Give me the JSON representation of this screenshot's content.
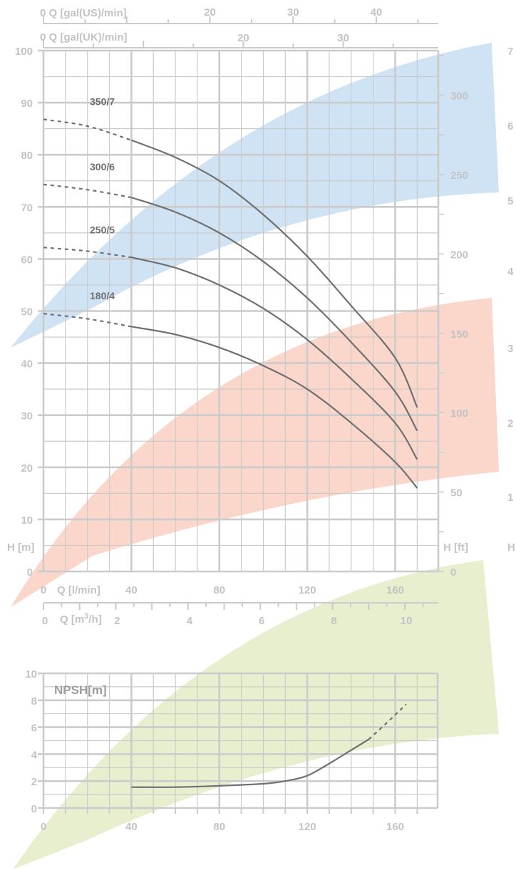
{
  "chart_data": [
    {
      "type": "line",
      "title": "",
      "xlabel": "Q [l/min]",
      "ylabel": "H [m]",
      "xlim": [
        0,
        180
      ],
      "ylim": [
        0,
        100
      ],
      "x_ticks": [
        "0",
        "40",
        "80",
        "120",
        "160"
      ],
      "y_ticks": [
        "0",
        "10",
        "20",
        "30",
        "40",
        "50",
        "60",
        "70",
        "80",
        "90",
        "100"
      ],
      "secondary_axes": {
        "right": {
          "label": "H [ft]",
          "ticks": [
            "0",
            "50",
            "100",
            "150",
            "200",
            "250",
            "300"
          ]
        },
        "top_us": {
          "label": "0  Q [gal(US)/min]",
          "ticks": [
            "20",
            "30",
            "40"
          ]
        },
        "top_uk": {
          "label": "0  Q [gal(UK)/min]",
          "ticks": [
            "20",
            "30"
          ]
        },
        "bottom_m3h": {
          "label": "Q [m3/h]",
          "zero": "0",
          "ticks": [
            "2",
            "4",
            "6",
            "8",
            "10"
          ]
        }
      },
      "grid": true,
      "partial_right_labels": [
        "7",
        "6",
        "5",
        "4",
        "3",
        "2",
        "1",
        "H ["
      ],
      "series": [
        {
          "name": "350/7",
          "x": [
            0,
            20,
            40,
            60,
            80,
            100,
            120,
            140,
            160,
            170
          ],
          "y": [
            86.8,
            85.5,
            82.8,
            79.5,
            75,
            68.5,
            60.5,
            51,
            41,
            31.5
          ],
          "dashed_until": 40
        },
        {
          "name": "300/6",
          "x": [
            0,
            20,
            40,
            60,
            80,
            100,
            120,
            140,
            160,
            170
          ],
          "y": [
            74.3,
            73.3,
            71.8,
            69,
            65,
            59.5,
            52.5,
            44,
            34.5,
            27
          ],
          "dashed_until": 40
        },
        {
          "name": "250/5",
          "x": [
            0,
            20,
            40,
            60,
            80,
            100,
            120,
            140,
            160,
            170
          ],
          "y": [
            62.2,
            61.5,
            60.3,
            58.3,
            55,
            50.5,
            44.5,
            37,
            28.5,
            21.5
          ],
          "dashed_until": 40
        },
        {
          "name": "180/4",
          "x": [
            0,
            20,
            40,
            60,
            80,
            100,
            120,
            140,
            160,
            170
          ],
          "y": [
            49.5,
            48.5,
            47,
            45.5,
            43,
            39.5,
            35,
            28.5,
            21,
            16
          ],
          "dashed_until": 40
        }
      ]
    },
    {
      "type": "line",
      "title": "",
      "xlabel": "",
      "ylabel": "NPSH[m]",
      "xlim": [
        0,
        180
      ],
      "ylim": [
        0,
        10
      ],
      "x_ticks": [
        "0",
        "40",
        "80",
        "120",
        "160"
      ],
      "y_ticks": [
        "0",
        "2",
        "4",
        "6",
        "8",
        "10"
      ],
      "grid": true,
      "series": [
        {
          "name": "",
          "x": [
            40,
            60,
            80,
            100,
            110,
            120,
            130,
            140,
            148,
            156,
            165
          ],
          "y": [
            1.55,
            1.55,
            1.65,
            1.8,
            2.0,
            2.4,
            3.3,
            4.3,
            5.1,
            6.3,
            7.7
          ],
          "dashed_from": 148
        }
      ]
    }
  ],
  "colors": {
    "blue_band": "#cfe3f4",
    "red_band": "#fbd6cb",
    "green_band": "#e7efce",
    "grid": "#cbcbcb",
    "curve": "#707070",
    "text": "#c3c3c3"
  }
}
